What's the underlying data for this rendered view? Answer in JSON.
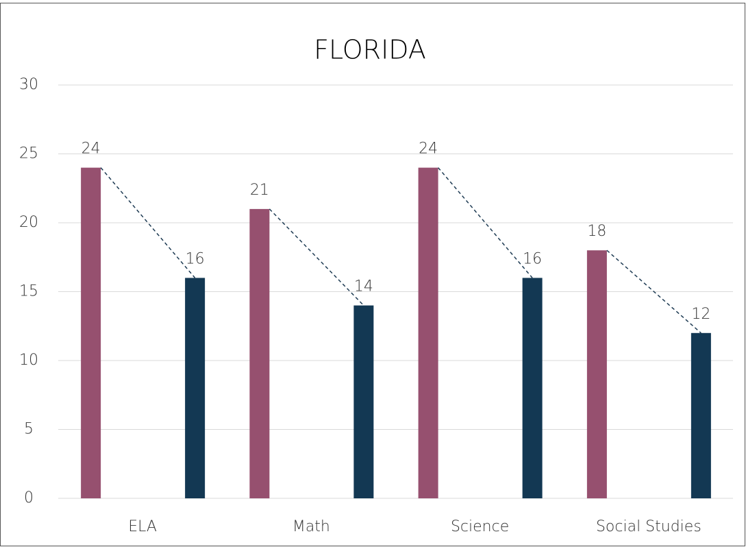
{
  "chart_data": {
    "type": "bar",
    "title": "FLORIDA",
    "categories": [
      "ELA",
      "Math",
      "Science",
      "Social Studies"
    ],
    "series": [
      {
        "color": "#96506f",
        "values": [
          24,
          21,
          24,
          18
        ]
      },
      {
        "color": "#133853",
        "values": [
          16,
          14,
          16,
          12
        ]
      }
    ],
    "ylim": [
      0,
      30
    ],
    "yticks": [
      0,
      5,
      10,
      15,
      20,
      25,
      30
    ],
    "grid": true,
    "connector_color": "#1d3a52"
  }
}
